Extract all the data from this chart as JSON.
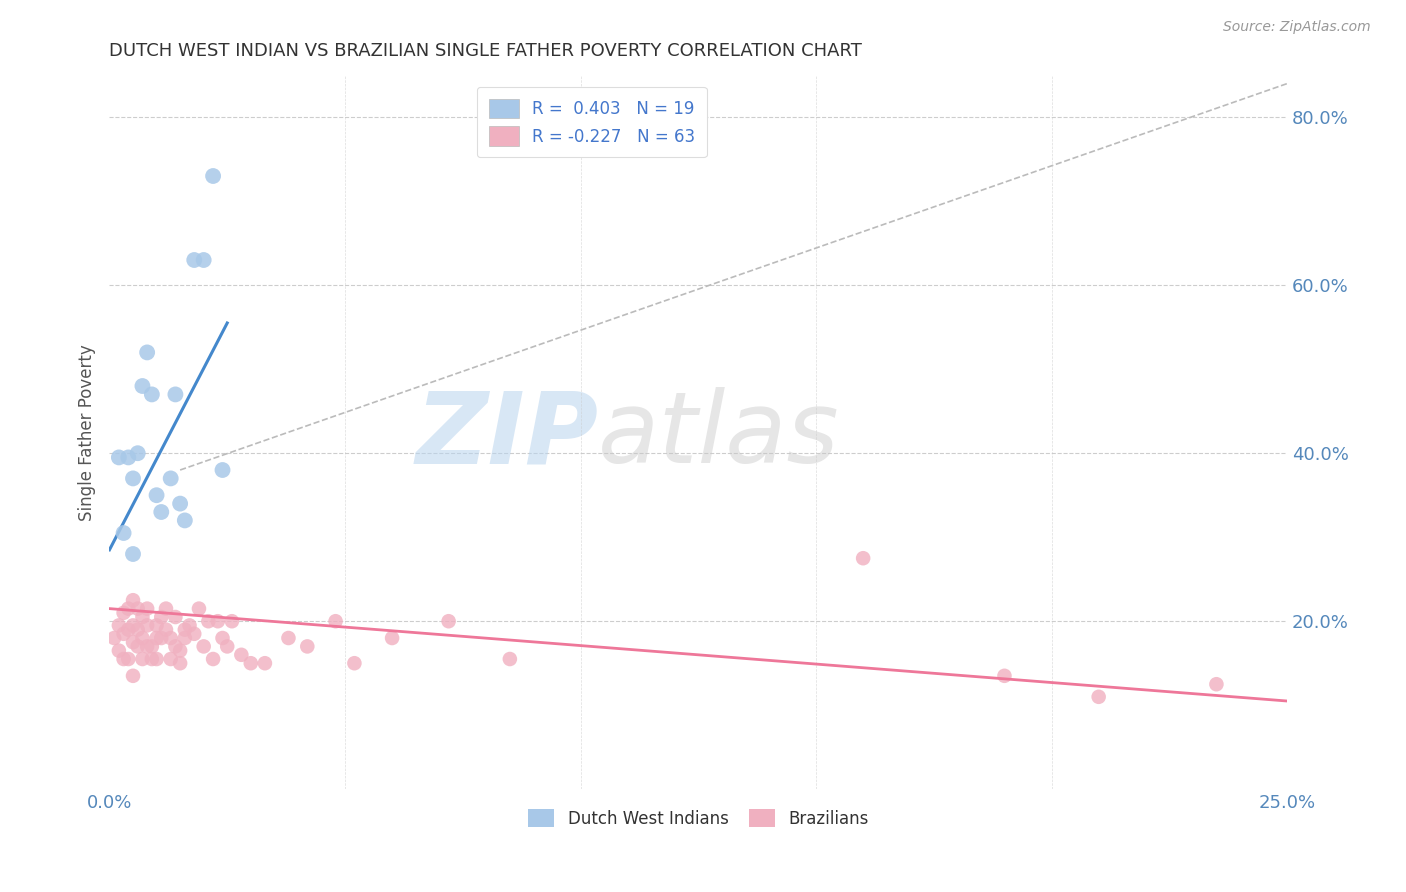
{
  "title": "DUTCH WEST INDIAN VS BRAZILIAN SINGLE FATHER POVERTY CORRELATION CHART",
  "source": "Source: ZipAtlas.com",
  "ylabel_label": "Single Father Poverty",
  "xlim": [
    0.0,
    0.25
  ],
  "ylim": [
    0.0,
    0.85
  ],
  "background_color": "#ffffff",
  "grid_color": "#c8c8c8",
  "watermark_zip": "ZIP",
  "watermark_atlas": "atlas",
  "blue_color": "#a8c8e8",
  "pink_color": "#f0b0c0",
  "blue_line_color": "#4488cc",
  "pink_line_color": "#ee7799",
  "dashed_line_color": "#bbbbbb",
  "dutch_west_indians_x": [
    0.002,
    0.003,
    0.004,
    0.005,
    0.005,
    0.006,
    0.007,
    0.008,
    0.009,
    0.01,
    0.011,
    0.013,
    0.014,
    0.015,
    0.016,
    0.018,
    0.02,
    0.022,
    0.024
  ],
  "dutch_west_indians_y": [
    0.395,
    0.305,
    0.395,
    0.37,
    0.28,
    0.4,
    0.48,
    0.52,
    0.47,
    0.35,
    0.33,
    0.37,
    0.47,
    0.34,
    0.32,
    0.63,
    0.63,
    0.73,
    0.38
  ],
  "brazilians_x": [
    0.001,
    0.002,
    0.002,
    0.003,
    0.003,
    0.003,
    0.004,
    0.004,
    0.004,
    0.005,
    0.005,
    0.005,
    0.005,
    0.006,
    0.006,
    0.006,
    0.007,
    0.007,
    0.007,
    0.008,
    0.008,
    0.008,
    0.009,
    0.009,
    0.01,
    0.01,
    0.01,
    0.011,
    0.011,
    0.012,
    0.012,
    0.013,
    0.013,
    0.014,
    0.014,
    0.015,
    0.015,
    0.016,
    0.016,
    0.017,
    0.018,
    0.019,
    0.02,
    0.021,
    0.022,
    0.023,
    0.024,
    0.025,
    0.026,
    0.028,
    0.03,
    0.033,
    0.038,
    0.042,
    0.048,
    0.052,
    0.06,
    0.072,
    0.085,
    0.16,
    0.19,
    0.21,
    0.235
  ],
  "brazilians_y": [
    0.18,
    0.195,
    0.165,
    0.21,
    0.185,
    0.155,
    0.215,
    0.19,
    0.155,
    0.225,
    0.195,
    0.175,
    0.135,
    0.215,
    0.19,
    0.17,
    0.205,
    0.18,
    0.155,
    0.215,
    0.195,
    0.17,
    0.17,
    0.155,
    0.195,
    0.18,
    0.155,
    0.205,
    0.18,
    0.215,
    0.19,
    0.18,
    0.155,
    0.205,
    0.17,
    0.165,
    0.15,
    0.18,
    0.19,
    0.195,
    0.185,
    0.215,
    0.17,
    0.2,
    0.155,
    0.2,
    0.18,
    0.17,
    0.2,
    0.16,
    0.15,
    0.15,
    0.18,
    0.17,
    0.2,
    0.15,
    0.18,
    0.2,
    0.155,
    0.275,
    0.135,
    0.11,
    0.125
  ],
  "blue_trend_x": [
    0.0,
    0.025
  ],
  "blue_trend_y": [
    0.285,
    0.555
  ],
  "pink_trend_x": [
    0.0,
    0.25
  ],
  "pink_trend_y": [
    0.215,
    0.105
  ],
  "dashed_trend_x": [
    0.015,
    0.25
  ],
  "dashed_trend_y": [
    0.38,
    0.84
  ]
}
